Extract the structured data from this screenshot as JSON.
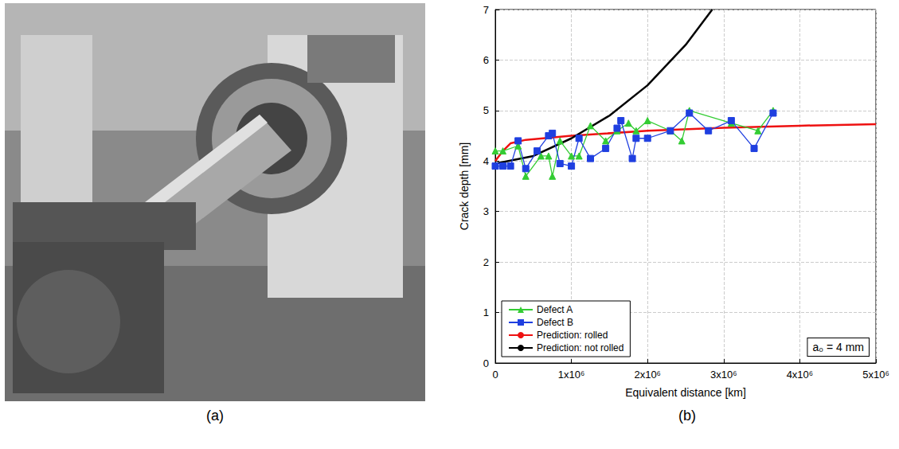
{
  "photo_panel": {
    "label": "(a)"
  },
  "chart_data": {
    "type": "line",
    "panel_label": "(b)",
    "x_label": "Equivalent distance [km]",
    "y_label": "Crack depth [mm]",
    "annotations": [
      "a₀ = 4 mm"
    ],
    "xlim": [
      0,
      5000000
    ],
    "xticks": [
      {
        "value": 0,
        "label": "0"
      },
      {
        "value": 1000000,
        "label": "1x10⁶"
      },
      {
        "value": 2000000,
        "label": "2x10⁶"
      },
      {
        "value": 3000000,
        "label": "3x10⁶"
      },
      {
        "value": 4000000,
        "label": "4x10⁶"
      },
      {
        "value": 5000000,
        "label": "5x10⁶"
      }
    ],
    "ylim": [
      0,
      7
    ],
    "yticks": [
      0,
      1,
      2,
      3,
      4,
      5,
      6,
      7
    ],
    "grid": true,
    "legend": "lower left",
    "series": [
      {
        "name": "Defect A",
        "color": "#33cc33",
        "marker": "triangle",
        "line_style": "solid",
        "x": [
          0,
          100000,
          300000,
          400000,
          600000,
          700000,
          750000,
          850000,
          1000000,
          1100000,
          1250000,
          1450000,
          1600000,
          1750000,
          1850000,
          2000000,
          2300000,
          2450000,
          2550000,
          3100000,
          3450000,
          3650000
        ],
        "values": [
          4.2,
          4.2,
          4.3,
          3.7,
          4.1,
          4.1,
          3.7,
          4.4,
          4.1,
          4.1,
          4.7,
          4.4,
          4.6,
          4.75,
          4.6,
          4.8,
          4.6,
          4.4,
          5.0,
          4.75,
          4.6,
          5.0
        ]
      },
      {
        "name": "Defect B",
        "color": "#1f3fe0",
        "marker": "square",
        "line_style": "solid",
        "x": [
          0,
          100000,
          200000,
          300000,
          400000,
          550000,
          700000,
          750000,
          850000,
          1000000,
          1100000,
          1250000,
          1450000,
          1600000,
          1650000,
          1800000,
          1850000,
          2000000,
          2300000,
          2550000,
          2800000,
          3100000,
          3400000,
          3650000
        ],
        "values": [
          3.9,
          3.9,
          3.9,
          4.4,
          3.85,
          4.2,
          4.5,
          4.55,
          3.95,
          3.9,
          4.45,
          4.05,
          4.25,
          4.65,
          4.8,
          4.05,
          4.45,
          4.45,
          4.6,
          4.95,
          4.6,
          4.8,
          4.25,
          4.95
        ]
      },
      {
        "name": "Prediction: rolled",
        "color": "#ee1111",
        "marker": "none",
        "line_style": "solid",
        "x": [
          0,
          100000,
          200000,
          400000,
          1000000,
          2000000,
          3000000,
          4000000,
          5000000
        ],
        "values": [
          4.0,
          4.2,
          4.35,
          4.42,
          4.5,
          4.6,
          4.66,
          4.7,
          4.73
        ]
      },
      {
        "name": "Prediction: not rolled",
        "color": "#000000",
        "marker": "none",
        "line_style": "solid",
        "x": [
          0,
          500000,
          1000000,
          1500000,
          2000000,
          2500000,
          2850000
        ],
        "values": [
          3.95,
          4.1,
          4.45,
          4.9,
          5.5,
          6.3,
          7.0
        ]
      }
    ]
  }
}
